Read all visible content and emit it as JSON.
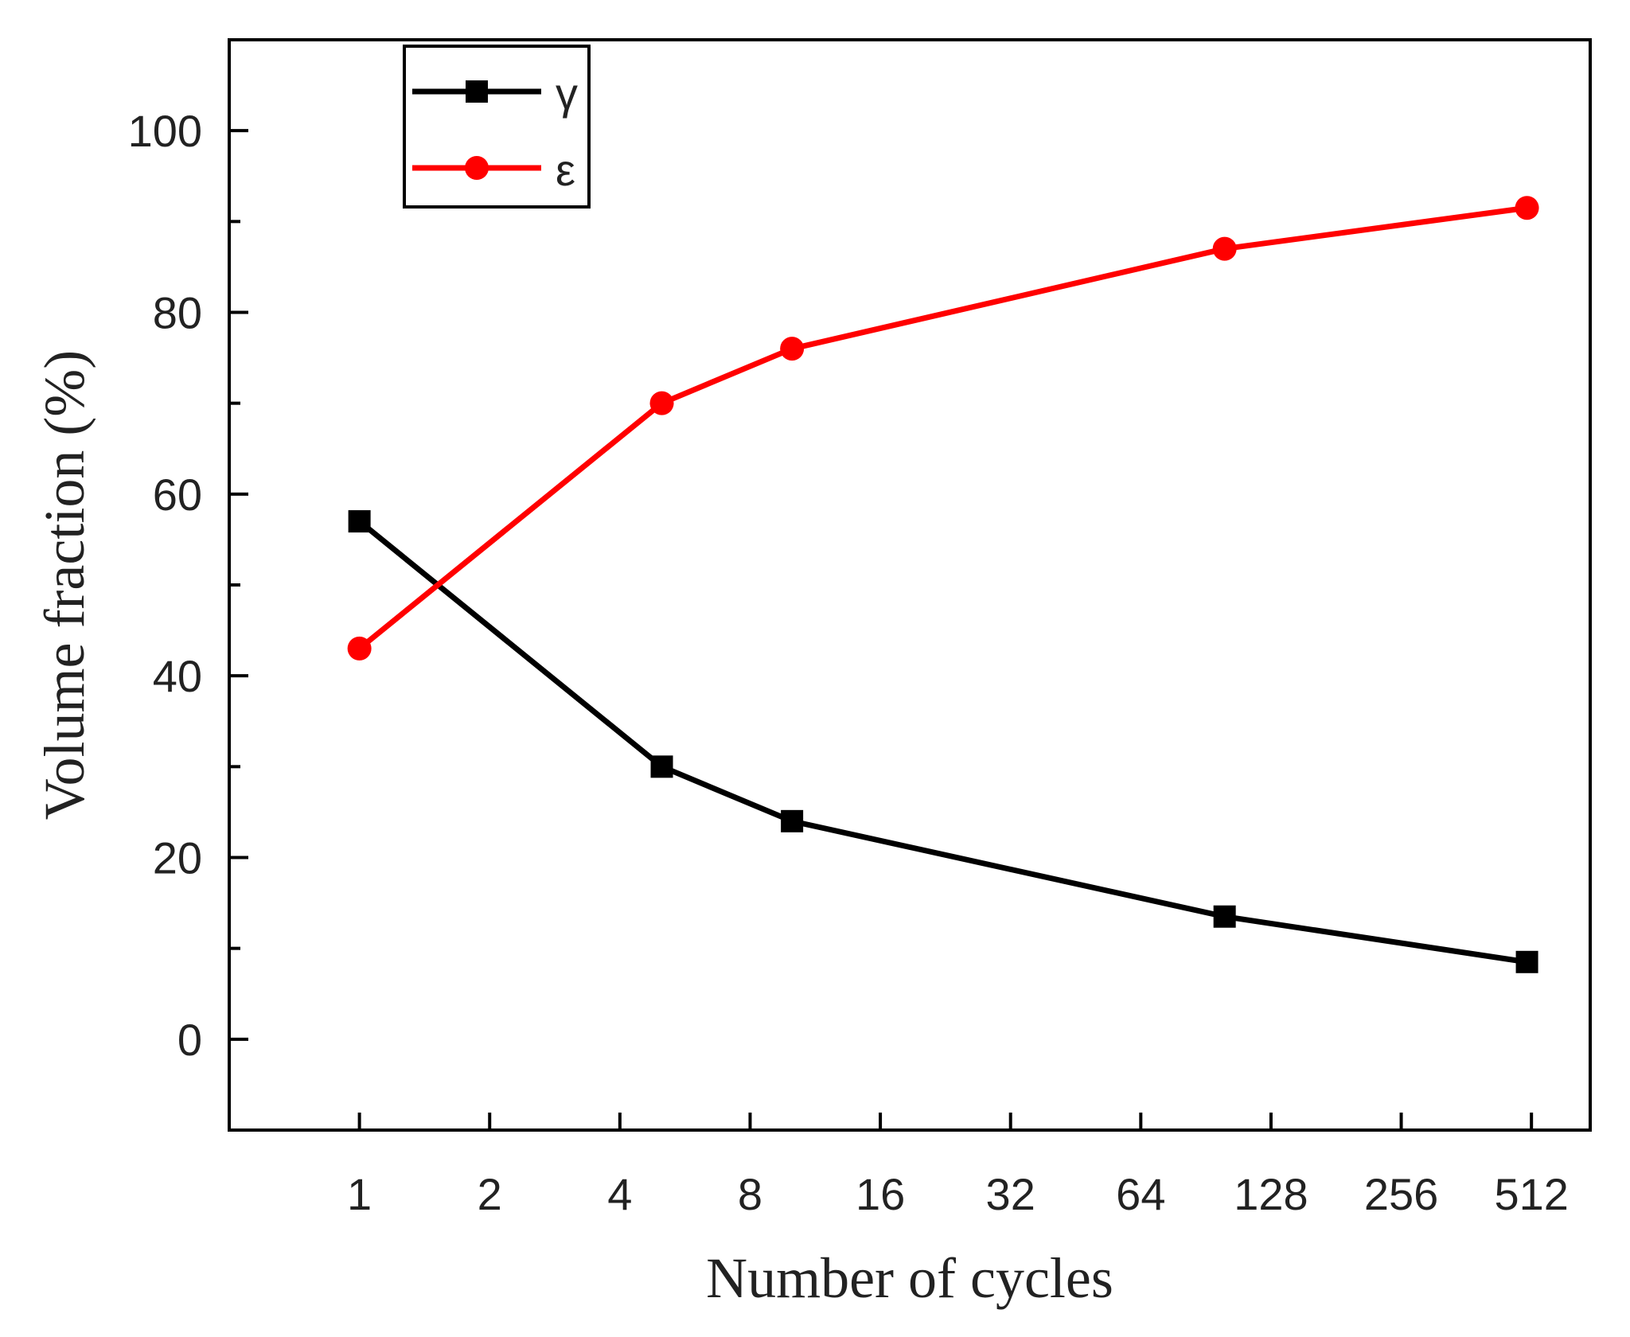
{
  "chart_data": {
    "type": "line",
    "title": "",
    "xlabel": "Number of cycles",
    "ylabel": "Volume fraction (%)",
    "xscale": "log2",
    "xlim": [
      0.5,
      700
    ],
    "ylim": [
      -10,
      110
    ],
    "x_ticks": [
      1,
      2,
      4,
      8,
      16,
      32,
      64,
      128,
      256,
      512
    ],
    "x_tick_labels": [
      "1",
      "2",
      "4",
      "8",
      "16",
      "32",
      "64",
      "128",
      "256",
      "512"
    ],
    "y_major_ticks": [
      0,
      20,
      40,
      60,
      80,
      100
    ],
    "y_tick_labels": [
      "0",
      "20",
      "40",
      "60",
      "80",
      "100"
    ],
    "y_minor_ticks": [
      10,
      30,
      50,
      70,
      90
    ],
    "grid": false,
    "legend_position": "top-left",
    "series": [
      {
        "name": "γ",
        "color": "#000000",
        "marker": "square",
        "x": [
          1,
          5,
          10,
          100,
          500
        ],
        "values": [
          57,
          30,
          24,
          13.5,
          8.5
        ]
      },
      {
        "name": "ε",
        "color": "#ff0000",
        "marker": "circle",
        "x": [
          1,
          5,
          10,
          100,
          500
        ],
        "values": [
          43,
          70,
          76,
          87,
          91.5
        ]
      }
    ]
  }
}
